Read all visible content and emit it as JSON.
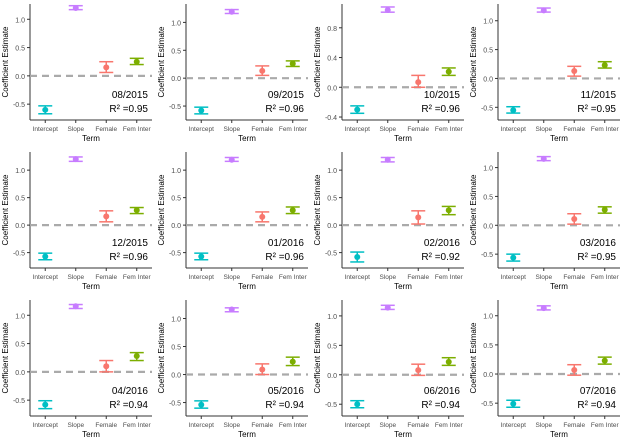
{
  "chart_data": [
    {
      "type": "errorbar",
      "title": "08/2015",
      "r2_label": "R² =0.95",
      "xlabel": "Term",
      "ylabel": "Coefficient Estimate",
      "categories": [
        "Intercept",
        "Slope",
        "Female",
        "Fem Inter"
      ],
      "values": [
        -0.6,
        1.2,
        0.15,
        0.25
      ],
      "lower": [
        -0.67,
        1.17,
        0.06,
        0.2
      ],
      "upper": [
        -0.53,
        1.24,
        0.25,
        0.31
      ],
      "ylim": [
        -0.78,
        1.27
      ],
      "yticks": [
        -0.5,
        0.0,
        0.5,
        1.0
      ],
      "ytick_labels": [
        "-0.5",
        "0.0",
        "0.5",
        "1.0"
      ],
      "reference_line": 0,
      "colors": [
        "#00bfc4",
        "#c77cff",
        "#f8766d",
        "#7cae00"
      ],
      "reference_color": "#aaaaaa"
    },
    {
      "type": "errorbar",
      "title": "09/2015",
      "r2_label": "R² =0.96",
      "xlabel": "Term",
      "ylabel": "Coefficient Estimate",
      "categories": [
        "Intercept",
        "Slope",
        "Female",
        "Fem Inter"
      ],
      "values": [
        -0.58,
        1.19,
        0.13,
        0.26
      ],
      "lower": [
        -0.64,
        1.16,
        0.05,
        0.21
      ],
      "upper": [
        -0.52,
        1.23,
        0.22,
        0.31
      ],
      "ylim": [
        -0.75,
        1.33
      ],
      "yticks": [
        -0.5,
        0.0,
        0.5,
        1.0
      ],
      "ytick_labels": [
        "-0.5",
        "0.0",
        "0.5",
        "1.0"
      ],
      "reference_line": 0,
      "colors": [
        "#00bfc4",
        "#c77cff",
        "#f8766d",
        "#7cae00"
      ],
      "reference_color": "#aaaaaa"
    },
    {
      "type": "errorbar",
      "title": "10/2015",
      "r2_label": "R² =0.96",
      "xlabel": "Term",
      "ylabel": "Coefficient Estimate",
      "categories": [
        "Intercept",
        "Slope",
        "Female",
        "Fem Inter"
      ],
      "values": [
        -0.3,
        1.04,
        0.07,
        0.21
      ],
      "lower": [
        -0.35,
        1.01,
        0.0,
        0.16
      ],
      "upper": [
        -0.25,
        1.08,
        0.16,
        0.26
      ],
      "ylim": [
        -0.44,
        1.12
      ],
      "yticks": [
        -0.4,
        0.0,
        0.4,
        0.8
      ],
      "ytick_labels": [
        "-0.4",
        "0.0",
        "0.4",
        "0.8"
      ],
      "reference_line": 0,
      "colors": [
        "#00bfc4",
        "#c77cff",
        "#f8766d",
        "#7cae00"
      ],
      "reference_color": "#aaaaaa"
    },
    {
      "type": "errorbar",
      "title": "11/2015",
      "r2_label": "R² =0.95",
      "xlabel": "Term",
      "ylabel": "Coefficient Estimate",
      "categories": [
        "Intercept",
        "Slope",
        "Female",
        "Fem Inter"
      ],
      "values": [
        -0.55,
        1.18,
        0.13,
        0.23
      ],
      "lower": [
        -0.6,
        1.15,
        0.04,
        0.18
      ],
      "upper": [
        -0.49,
        1.22,
        0.21,
        0.29
      ],
      "ylim": [
        -0.72,
        1.29
      ],
      "yticks": [
        -0.5,
        0.0,
        0.5,
        1.0
      ],
      "ytick_labels": [
        "-0.5",
        "0.0",
        "0.5",
        "1.0"
      ],
      "reference_line": 0,
      "colors": [
        "#00bfc4",
        "#c77cff",
        "#f8766d",
        "#7cae00"
      ],
      "reference_color": "#aaaaaa"
    },
    {
      "type": "errorbar",
      "title": "12/2015",
      "r2_label": "R² =0.96",
      "xlabel": "Term",
      "ylabel": "Coefficient Estimate",
      "categories": [
        "Intercept",
        "Slope",
        "Female",
        "Fem Inter"
      ],
      "values": [
        -0.57,
        1.2,
        0.16,
        0.27
      ],
      "lower": [
        -0.63,
        1.16,
        0.06,
        0.21
      ],
      "upper": [
        -0.51,
        1.24,
        0.26,
        0.32
      ],
      "ylim": [
        -0.78,
        1.33
      ],
      "yticks": [
        -0.5,
        0.0,
        0.5,
        1.0
      ],
      "ytick_labels": [
        "-0.5",
        "0.0",
        "0.5",
        "1.0"
      ],
      "reference_line": 0,
      "colors": [
        "#00bfc4",
        "#c77cff",
        "#f8766d",
        "#7cae00"
      ],
      "reference_color": "#aaaaaa"
    },
    {
      "type": "errorbar",
      "title": "01/2016",
      "r2_label": "R² =0.96",
      "xlabel": "Term",
      "ylabel": "Coefficient Estimate",
      "categories": [
        "Intercept",
        "Slope",
        "Female",
        "Fem Inter"
      ],
      "values": [
        -0.57,
        1.19,
        0.15,
        0.27
      ],
      "lower": [
        -0.63,
        1.16,
        0.06,
        0.21
      ],
      "upper": [
        -0.51,
        1.23,
        0.24,
        0.33
      ],
      "ylim": [
        -0.78,
        1.33
      ],
      "yticks": [
        -0.5,
        0.0,
        0.5,
        1.0
      ],
      "ytick_labels": [
        "-0.5",
        "0.0",
        "0.5",
        "1.0"
      ],
      "reference_line": 0,
      "colors": [
        "#00bfc4",
        "#c77cff",
        "#f8766d",
        "#7cae00"
      ],
      "reference_color": "#aaaaaa"
    },
    {
      "type": "errorbar",
      "title": "02/2016",
      "r2_label": "R² =0.92",
      "xlabel": "Term",
      "ylabel": "Coefficient Estimate",
      "categories": [
        "Intercept",
        "Slope",
        "Female",
        "Fem Inter"
      ],
      "values": [
        -0.58,
        1.19,
        0.14,
        0.27
      ],
      "lower": [
        -0.67,
        1.15,
        0.02,
        0.19
      ],
      "upper": [
        -0.49,
        1.23,
        0.26,
        0.34
      ],
      "ylim": [
        -0.78,
        1.33
      ],
      "yticks": [
        -0.5,
        0.0,
        0.5,
        1.0
      ],
      "ytick_labels": [
        "-0.5",
        "0.0",
        "0.5",
        "1.0"
      ],
      "reference_line": 0,
      "colors": [
        "#00bfc4",
        "#c77cff",
        "#f8766d",
        "#7cae00"
      ],
      "reference_color": "#aaaaaa"
    },
    {
      "type": "errorbar",
      "title": "03/2016",
      "r2_label": "R² =0.95",
      "xlabel": "Term",
      "ylabel": "Coefficient Estimate",
      "categories": [
        "Intercept",
        "Slope",
        "Female",
        "Fem Inter"
      ],
      "values": [
        -0.56,
        1.15,
        0.11,
        0.27
      ],
      "lower": [
        -0.62,
        1.12,
        0.02,
        0.21
      ],
      "upper": [
        -0.5,
        1.19,
        0.2,
        0.32
      ],
      "ylim": [
        -0.74,
        1.27
      ],
      "yticks": [
        -0.5,
        0.0,
        0.5,
        1.0
      ],
      "ytick_labels": [
        "-0.5",
        "0.0",
        "0.5",
        "1.0"
      ],
      "reference_line": 0,
      "colors": [
        "#00bfc4",
        "#c77cff",
        "#f8766d",
        "#7cae00"
      ],
      "reference_color": "#aaaaaa"
    },
    {
      "type": "errorbar",
      "title": "04/2016",
      "r2_label": "R² =0.94",
      "xlabel": "Term",
      "ylabel": "Coefficient Estimate",
      "categories": [
        "Intercept",
        "Slope",
        "Female",
        "Fem Inter"
      ],
      "values": [
        -0.58,
        1.16,
        0.1,
        0.28
      ],
      "lower": [
        -0.65,
        1.12,
        0.0,
        0.2
      ],
      "upper": [
        -0.51,
        1.19,
        0.2,
        0.34
      ],
      "ylim": [
        -0.78,
        1.27
      ],
      "yticks": [
        -0.5,
        0.0,
        0.5,
        1.0
      ],
      "ytick_labels": [
        "-0.5",
        "0.0",
        "0.5",
        "1.0"
      ],
      "reference_line": 0,
      "colors": [
        "#00bfc4",
        "#c77cff",
        "#f8766d",
        "#7cae00"
      ],
      "reference_color": "#aaaaaa"
    },
    {
      "type": "errorbar",
      "title": "05/2016",
      "r2_label": "R² =0.94",
      "xlabel": "Term",
      "ylabel": "Coefficient Estimate",
      "categories": [
        "Intercept",
        "Slope",
        "Female",
        "Fem Inter"
      ],
      "values": [
        -0.54,
        1.16,
        0.09,
        0.23
      ],
      "lower": [
        -0.6,
        1.12,
        0.0,
        0.16
      ],
      "upper": [
        -0.47,
        1.19,
        0.19,
        0.31
      ],
      "ylim": [
        -0.74,
        1.33
      ],
      "yticks": [
        -0.5,
        0.0,
        0.5,
        1.0
      ],
      "ytick_labels": [
        "-0.5",
        "0.0",
        "0.5",
        "1.0"
      ],
      "reference_line": 0,
      "colors": [
        "#00bfc4",
        "#c77cff",
        "#f8766d",
        "#7cae00"
      ],
      "reference_color": "#aaaaaa"
    },
    {
      "type": "errorbar",
      "title": "06/2016",
      "r2_label": "R² =0.94",
      "xlabel": "Term",
      "ylabel": "Coefficient Estimate",
      "categories": [
        "Intercept",
        "Slope",
        "Female",
        "Fem Inter"
      ],
      "values": [
        -0.5,
        1.14,
        0.08,
        0.22
      ],
      "lower": [
        -0.56,
        1.11,
        -0.01,
        0.16
      ],
      "upper": [
        -0.44,
        1.18,
        0.18,
        0.29
      ],
      "ylim": [
        -0.7,
        1.27
      ],
      "yticks": [
        -0.5,
        0.0,
        0.5,
        1.0
      ],
      "ytick_labels": [
        "-0.5",
        "0.0",
        "0.5",
        "1.0"
      ],
      "reference_line": 0,
      "colors": [
        "#00bfc4",
        "#c77cff",
        "#f8766d",
        "#7cae00"
      ],
      "reference_color": "#aaaaaa"
    },
    {
      "type": "errorbar",
      "title": "07/2016",
      "r2_label": "R² =0.94",
      "xlabel": "Term",
      "ylabel": "Coefficient Estimate",
      "categories": [
        "Intercept",
        "Slope",
        "Female",
        "Fem Inter"
      ],
      "values": [
        -0.51,
        1.13,
        0.07,
        0.23
      ],
      "lower": [
        -0.57,
        1.1,
        -0.02,
        0.17
      ],
      "upper": [
        -0.45,
        1.17,
        0.16,
        0.29
      ],
      "ylim": [
        -0.72,
        1.27
      ],
      "yticks": [
        -0.5,
        0.0,
        0.5,
        1.0
      ],
      "ytick_labels": [
        "-0.5",
        "0.0",
        "0.5",
        "1.0"
      ],
      "reference_line": 0,
      "colors": [
        "#00bfc4",
        "#c77cff",
        "#f8766d",
        "#7cae00"
      ],
      "reference_color": "#aaaaaa"
    }
  ]
}
